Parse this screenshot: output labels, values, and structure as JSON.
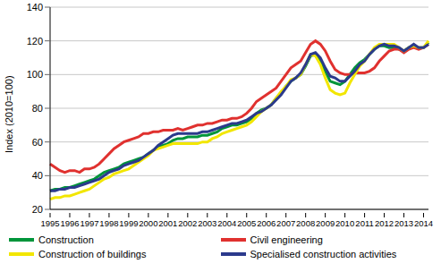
{
  "chart_data": {
    "type": "line",
    "y_label": "Index (2010=100)",
    "categories": [
      "1995",
      null,
      null,
      null,
      "1996",
      null,
      null,
      null,
      "1997",
      null,
      null,
      null,
      "1998",
      null,
      null,
      null,
      "1999",
      null,
      null,
      null,
      "2000",
      null,
      null,
      null,
      "2001",
      null,
      null,
      null,
      "2002",
      null,
      null,
      null,
      "2003",
      null,
      null,
      null,
      "2004",
      null,
      null,
      null,
      "2005",
      null,
      null,
      null,
      "2006",
      null,
      null,
      null,
      "2007",
      null,
      null,
      null,
      "2008",
      null,
      null,
      null,
      "2009",
      null,
      null,
      null,
      "2010",
      null,
      null,
      null,
      "2011",
      null,
      null,
      null,
      "2012",
      null,
      null,
      null,
      "2013",
      null,
      null,
      null,
      "2014",
      null
    ],
    "series": [
      {
        "name": "Construction",
        "color": "#00953a",
        "values": [
          31,
          32,
          32,
          33,
          33,
          34,
          35,
          36,
          37,
          38,
          40,
          42,
          43,
          44,
          45,
          47,
          48,
          49,
          50,
          51,
          53,
          55,
          57,
          58,
          59,
          61,
          62,
          62,
          63,
          63,
          63,
          64,
          64,
          65,
          66,
          68,
          69,
          70,
          70,
          71,
          72,
          74,
          77,
          79,
          80,
          82,
          86,
          89,
          93,
          96,
          98,
          100,
          105,
          111,
          112,
          108,
          102,
          96,
          95,
          94,
          96,
          100,
          104,
          107,
          109,
          112,
          115,
          117,
          117,
          116,
          116,
          115,
          114,
          116,
          117,
          116,
          116,
          119
        ]
      },
      {
        "name": "Civil engineering",
        "color": "#e0312f",
        "values": [
          47,
          45,
          43,
          42,
          43,
          43,
          42,
          44,
          44,
          45,
          47,
          50,
          53,
          56,
          58,
          60,
          61,
          62,
          63,
          65,
          65,
          66,
          66,
          67,
          67,
          67,
          68,
          67,
          68,
          69,
          70,
          70,
          71,
          71,
          72,
          73,
          73,
          74,
          74,
          75,
          77,
          80,
          84,
          86,
          88,
          90,
          92,
          96,
          100,
          104,
          106,
          108,
          113,
          118,
          120,
          118,
          114,
          108,
          103,
          101,
          100,
          100,
          101,
          101,
          101,
          102,
          104,
          108,
          111,
          114,
          115,
          115,
          113,
          115,
          116,
          115,
          116,
          118
        ]
      },
      {
        "name": "Construction of buildings",
        "color": "#f2e600",
        "values": [
          26,
          27,
          27,
          28,
          28,
          29,
          30,
          31,
          32,
          34,
          36,
          38,
          39,
          41,
          42,
          43,
          44,
          46,
          48,
          50,
          52,
          55,
          56,
          57,
          58,
          59,
          59,
          59,
          59,
          59,
          59,
          60,
          60,
          62,
          63,
          65,
          66,
          67,
          68,
          69,
          70,
          72,
          75,
          78,
          80,
          82,
          86,
          90,
          93,
          97,
          98,
          100,
          106,
          112,
          111,
          106,
          98,
          91,
          89,
          88,
          89,
          95,
          100,
          105,
          108,
          112,
          116,
          118,
          118,
          118,
          118,
          116,
          114,
          116,
          117,
          116,
          116,
          120
        ]
      },
      {
        "name": "Specialised construction activities",
        "color": "#2b3a8c",
        "values": [
          31,
          31,
          32,
          32,
          33,
          33,
          34,
          35,
          36,
          37,
          38,
          40,
          42,
          43,
          44,
          46,
          47,
          48,
          49,
          51,
          53,
          55,
          58,
          60,
          62,
          64,
          65,
          65,
          65,
          65,
          65,
          66,
          66,
          67,
          68,
          69,
          70,
          71,
          71,
          72,
          73,
          75,
          77,
          78,
          80,
          82,
          85,
          88,
          92,
          96,
          98,
          101,
          106,
          112,
          113,
          110,
          104,
          99,
          98,
          96,
          96,
          99,
          102,
          106,
          108,
          112,
          115,
          117,
          118,
          117,
          117,
          116,
          114,
          116,
          118,
          116,
          116,
          118
        ]
      }
    ],
    "ylim": [
      20,
      140
    ],
    "yticks": [
      20,
      40,
      60,
      80,
      100,
      120,
      140
    ],
    "grid": true,
    "legend": "bottom"
  }
}
